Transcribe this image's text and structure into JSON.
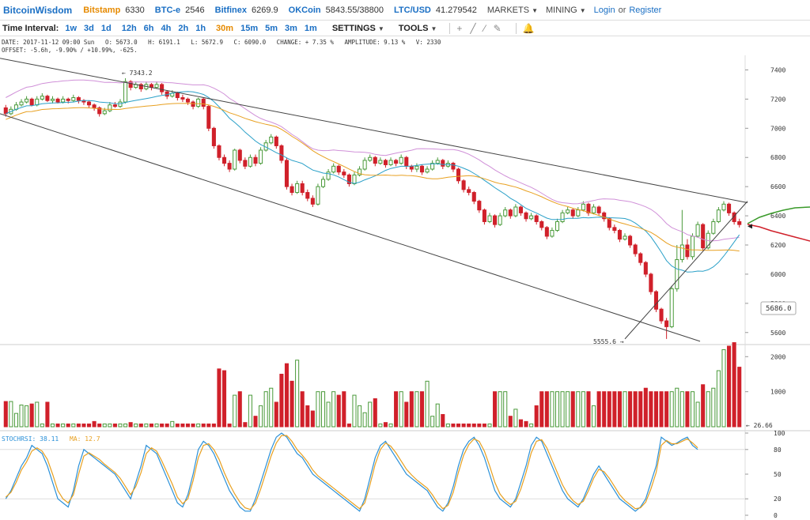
{
  "topbar": {
    "brand": "BitcoinWisdom",
    "markets": [
      {
        "name": "Bitstamp",
        "value": "6330",
        "color": "#e68a00"
      },
      {
        "name": "BTC-e",
        "value": "2546",
        "color": "#1a6fc4"
      },
      {
        "name": "Bitfinex",
        "value": "6269.9",
        "color": "#1a6fc4"
      },
      {
        "name": "OKCoin",
        "value": "5843.55/38800",
        "color": "#1a6fc4"
      },
      {
        "name": "LTC/USD",
        "value": "41.279542",
        "color": "#1a6fc4"
      }
    ],
    "menu_markets": "MARKETS",
    "menu_mining": "MINING",
    "login": "Login",
    "or": "or",
    "register": "Register"
  },
  "toolbar": {
    "label": "Time Interval:",
    "intervals": [
      "1w",
      "3d",
      "1d",
      "12h",
      "6h",
      "4h",
      "2h",
      "1h",
      "30m",
      "15m",
      "5m",
      "3m",
      "1m"
    ],
    "selected": "30m",
    "settings": "SETTINGS",
    "tools": "TOOLS",
    "tool_icons": [
      "crosshair-icon",
      "line-tool-icon",
      "ray-tool-icon",
      "pen-tool-icon",
      "bell-icon"
    ]
  },
  "info": {
    "line1": "DATE: 2017-11-12 09:00 Sun   O: 5673.0   H: 6191.1   L: 5672.9   C: 6090.0   CHANGE: + 7.35 %   AMPLITUDE: 9.13 %   V: 2330",
    "line2": "OFFSET: -5.6h, -9.90% / +10.99%, -625."
  },
  "colors": {
    "up": "#4a9a3a",
    "down": "#d0202a",
    "ma_orange": "#e8a020",
    "ma_blue": "#2aa0c8",
    "band_purple": "#d090d8",
    "stoch_blue": "#2a90d8",
    "stoch_orange": "#e8a020"
  },
  "chart_data": {
    "type": "candlestick",
    "price_axis": {
      "ticks": [
        5600,
        5800,
        6000,
        6200,
        6400,
        6600,
        6800,
        7000,
        7200,
        7400
      ],
      "ylim": [
        5550,
        7500
      ]
    },
    "annotations": {
      "high": "← 7343.2",
      "low": "5555.6 →",
      "last_price": "6330",
      "current_price": "5686.0",
      "volume_last": "← 26.66"
    },
    "volume_axis": {
      "ticks": [
        1000,
        2000
      ],
      "ylim": [
        0,
        2300
      ]
    },
    "stoch": {
      "label": "STOCHRSI: 38.11",
      "ma_label": "MA: 12.7",
      "ticks": [
        0,
        20,
        50,
        80,
        100
      ]
    },
    "candles": [
      [
        7140,
        7100,
        7160,
        7080,
        "d"
      ],
      [
        7100,
        7130,
        7150,
        7090,
        "u"
      ],
      [
        7130,
        7160,
        7180,
        7120,
        "u"
      ],
      [
        7160,
        7180,
        7200,
        7150,
        "u"
      ],
      [
        7180,
        7200,
        7220,
        7170,
        "u"
      ],
      [
        7200,
        7160,
        7210,
        7150,
        "d"
      ],
      [
        7160,
        7200,
        7220,
        7150,
        "u"
      ],
      [
        7200,
        7220,
        7240,
        7190,
        "u"
      ],
      [
        7220,
        7190,
        7230,
        7180,
        "d"
      ],
      [
        7190,
        7200,
        7220,
        7170,
        "u"
      ],
      [
        7200,
        7180,
        7210,
        7170,
        "d"
      ],
      [
        7180,
        7200,
        7220,
        7170,
        "u"
      ],
      [
        7200,
        7190,
        7210,
        7170,
        "d"
      ],
      [
        7190,
        7210,
        7230,
        7180,
        "u"
      ],
      [
        7210,
        7190,
        7220,
        7170,
        "d"
      ],
      [
        7190,
        7180,
        7200,
        7160,
        "d"
      ],
      [
        7180,
        7160,
        7190,
        7140,
        "d"
      ],
      [
        7160,
        7140,
        7170,
        7120,
        "d"
      ],
      [
        7140,
        7100,
        7150,
        7080,
        "d"
      ],
      [
        7100,
        7120,
        7140,
        7090,
        "u"
      ],
      [
        7120,
        7160,
        7180,
        7110,
        "u"
      ],
      [
        7160,
        7150,
        7180,
        7140,
        "d"
      ],
      [
        7150,
        7180,
        7200,
        7140,
        "u"
      ],
      [
        7180,
        7320,
        7343,
        7170,
        "u"
      ],
      [
        7320,
        7280,
        7330,
        7260,
        "d"
      ],
      [
        7280,
        7300,
        7320,
        7270,
        "u"
      ],
      [
        7300,
        7270,
        7310,
        7250,
        "d"
      ],
      [
        7270,
        7300,
        7320,
        7260,
        "u"
      ],
      [
        7300,
        7280,
        7310,
        7260,
        "d"
      ],
      [
        7280,
        7300,
        7320,
        7270,
        "u"
      ],
      [
        7300,
        7250,
        7310,
        7230,
        "d"
      ],
      [
        7250,
        7220,
        7260,
        7200,
        "d"
      ],
      [
        7220,
        7240,
        7260,
        7210,
        "u"
      ],
      [
        7240,
        7210,
        7250,
        7190,
        "d"
      ],
      [
        7210,
        7200,
        7230,
        7180,
        "d"
      ],
      [
        7200,
        7180,
        7210,
        7160,
        "d"
      ],
      [
        7180,
        7150,
        7190,
        7130,
        "d"
      ],
      [
        7150,
        7200,
        7210,
        7140,
        "u"
      ],
      [
        7200,
        7150,
        7210,
        7130,
        "d"
      ],
      [
        7150,
        7000,
        7160,
        6980,
        "d"
      ],
      [
        7000,
        6880,
        7010,
        6860,
        "d"
      ],
      [
        6880,
        6800,
        6890,
        6780,
        "d"
      ],
      [
        6800,
        6760,
        6820,
        6740,
        "d"
      ],
      [
        6760,
        6720,
        6780,
        6700,
        "d"
      ],
      [
        6720,
        6850,
        6860,
        6710,
        "u"
      ],
      [
        6850,
        6780,
        6860,
        6760,
        "d"
      ],
      [
        6780,
        6740,
        6800,
        6720,
        "d"
      ],
      [
        6740,
        6800,
        6820,
        6730,
        "u"
      ],
      [
        6800,
        6760,
        6820,
        6740,
        "d"
      ],
      [
        6760,
        6850,
        6870,
        6750,
        "u"
      ],
      [
        6850,
        6900,
        6920,
        6840,
        "u"
      ],
      [
        6900,
        6940,
        6960,
        6890,
        "u"
      ],
      [
        6940,
        6880,
        6950,
        6860,
        "d"
      ],
      [
        6880,
        6780,
        6890,
        6760,
        "d"
      ],
      [
        6780,
        6600,
        6800,
        6580,
        "d"
      ],
      [
        6600,
        6560,
        6620,
        6540,
        "d"
      ],
      [
        6560,
        6620,
        6640,
        6550,
        "u"
      ],
      [
        6620,
        6560,
        6640,
        6540,
        "d"
      ],
      [
        6560,
        6520,
        6580,
        6500,
        "d"
      ],
      [
        6520,
        6480,
        6540,
        6460,
        "d"
      ],
      [
        6480,
        6600,
        6620,
        6470,
        "u"
      ],
      [
        6600,
        6650,
        6670,
        6590,
        "u"
      ],
      [
        6650,
        6700,
        6720,
        6640,
        "u"
      ],
      [
        6700,
        6740,
        6760,
        6690,
        "u"
      ],
      [
        6740,
        6700,
        6750,
        6680,
        "d"
      ],
      [
        6700,
        6680,
        6720,
        6660,
        "d"
      ],
      [
        6680,
        6620,
        6690,
        6600,
        "d"
      ],
      [
        6620,
        6680,
        6700,
        6610,
        "u"
      ],
      [
        6680,
        6720,
        6740,
        6670,
        "u"
      ],
      [
        6720,
        6780,
        6800,
        6710,
        "u"
      ],
      [
        6780,
        6800,
        6820,
        6770,
        "u"
      ],
      [
        6800,
        6760,
        6810,
        6740,
        "d"
      ],
      [
        6760,
        6780,
        6800,
        6750,
        "u"
      ],
      [
        6780,
        6750,
        6790,
        6730,
        "d"
      ],
      [
        6750,
        6780,
        6800,
        6740,
        "u"
      ],
      [
        6780,
        6760,
        6790,
        6740,
        "d"
      ],
      [
        6760,
        6800,
        6820,
        6750,
        "u"
      ],
      [
        6800,
        6740,
        6810,
        6720,
        "d"
      ],
      [
        6740,
        6720,
        6750,
        6700,
        "d"
      ],
      [
        6720,
        6740,
        6760,
        6700,
        "u"
      ],
      [
        6740,
        6700,
        6750,
        6680,
        "d"
      ],
      [
        6700,
        6720,
        6740,
        6690,
        "u"
      ],
      [
        6720,
        6760,
        6780,
        6710,
        "u"
      ],
      [
        6760,
        6780,
        6800,
        6750,
        "u"
      ],
      [
        6780,
        6740,
        6790,
        6720,
        "d"
      ],
      [
        6740,
        6760,
        6780,
        6730,
        "u"
      ],
      [
        6760,
        6720,
        6770,
        6700,
        "d"
      ],
      [
        6720,
        6640,
        6730,
        6620,
        "d"
      ],
      [
        6640,
        6580,
        6650,
        6560,
        "d"
      ],
      [
        6580,
        6560,
        6600,
        6540,
        "d"
      ],
      [
        6560,
        6500,
        6570,
        6480,
        "d"
      ],
      [
        6500,
        6440,
        6510,
        6420,
        "d"
      ],
      [
        6440,
        6360,
        6450,
        6340,
        "d"
      ],
      [
        6360,
        6400,
        6420,
        6350,
        "u"
      ],
      [
        6400,
        6340,
        6410,
        6320,
        "d"
      ],
      [
        6340,
        6400,
        6420,
        6330,
        "u"
      ],
      [
        6400,
        6440,
        6460,
        6390,
        "u"
      ],
      [
        6440,
        6400,
        6450,
        6380,
        "d"
      ],
      [
        6400,
        6460,
        6480,
        6390,
        "u"
      ],
      [
        6460,
        6420,
        6470,
        6400,
        "d"
      ],
      [
        6420,
        6380,
        6430,
        6360,
        "d"
      ],
      [
        6380,
        6400,
        6420,
        6370,
        "u"
      ],
      [
        6400,
        6360,
        6410,
        6340,
        "d"
      ],
      [
        6360,
        6320,
        6370,
        6300,
        "d"
      ],
      [
        6320,
        6260,
        6330,
        6240,
        "d"
      ],
      [
        6260,
        6300,
        6320,
        6250,
        "u"
      ],
      [
        6300,
        6360,
        6380,
        6290,
        "u"
      ],
      [
        6360,
        6420,
        6440,
        6350,
        "u"
      ],
      [
        6420,
        6440,
        6460,
        6410,
        "u"
      ],
      [
        6440,
        6400,
        6450,
        6380,
        "d"
      ],
      [
        6400,
        6440,
        6460,
        6390,
        "u"
      ],
      [
        6440,
        6480,
        6500,
        6430,
        "u"
      ],
      [
        6480,
        6420,
        6490,
        6400,
        "d"
      ],
      [
        6420,
        6460,
        6480,
        6410,
        "u"
      ],
      [
        6460,
        6420,
        6470,
        6400,
        "d"
      ],
      [
        6420,
        6380,
        6430,
        6360,
        "d"
      ],
      [
        6380,
        6320,
        6390,
        6300,
        "d"
      ],
      [
        6320,
        6300,
        6340,
        6280,
        "d"
      ],
      [
        6300,
        6240,
        6310,
        6220,
        "d"
      ],
      [
        6240,
        6260,
        6280,
        6230,
        "u"
      ],
      [
        6260,
        6200,
        6270,
        6180,
        "d"
      ],
      [
        6200,
        6140,
        6210,
        6120,
        "d"
      ],
      [
        6140,
        6080,
        6150,
        6060,
        "d"
      ],
      [
        6080,
        6000,
        6090,
        5980,
        "d"
      ],
      [
        6000,
        5880,
        6010,
        5860,
        "d"
      ],
      [
        5880,
        5760,
        5890,
        5740,
        "d"
      ],
      [
        5760,
        5680,
        5770,
        5660,
        "d"
      ],
      [
        5680,
        5640,
        5700,
        5556,
        "d"
      ],
      [
        5640,
        5900,
        5920,
        5630,
        "u"
      ],
      [
        5900,
        6100,
        6200,
        5880,
        "u"
      ],
      [
        6100,
        6200,
        6440,
        6080,
        "u"
      ],
      [
        6200,
        6120,
        6240,
        6100,
        "d"
      ],
      [
        6120,
        6260,
        6280,
        6100,
        "u"
      ],
      [
        6260,
        6340,
        6360,
        6250,
        "u"
      ],
      [
        6340,
        6180,
        6350,
        6160,
        "d"
      ],
      [
        6180,
        6280,
        6300,
        6170,
        "u"
      ],
      [
        6280,
        6360,
        6380,
        6270,
        "u"
      ],
      [
        6360,
        6440,
        6460,
        6350,
        "u"
      ],
      [
        6440,
        6480,
        6500,
        6430,
        "u"
      ],
      [
        6480,
        6420,
        6490,
        6400,
        "d"
      ],
      [
        6420,
        6360,
        6430,
        6340,
        "d"
      ],
      [
        6360,
        6340,
        6380,
        6320,
        "d"
      ]
    ],
    "volume": [
      720,
      720,
      380,
      620,
      600,
      650,
      700,
      80,
      700,
      80,
      80,
      80,
      80,
      80,
      80,
      80,
      80,
      150,
      80,
      80,
      80,
      80,
      80,
      80,
      120,
      80,
      80,
      80,
      80,
      80,
      80,
      80,
      150,
      80,
      80,
      80,
      80,
      80,
      80,
      80,
      80,
      1650,
      1600,
      80,
      900,
      1000,
      120,
      900,
      300,
      600,
      1000,
      1100,
      700,
      1500,
      1800,
      1300,
      1900,
      1000,
      600,
      450,
      1000,
      1000,
      700,
      1000,
      900,
      1000,
      80,
      900,
      600,
      400,
      700,
      800,
      80,
      120,
      80,
      1000,
      1000,
      700,
      1000,
      1000,
      1000,
      1300,
      300,
      650,
      350,
      80,
      80,
      80,
      80,
      80,
      80,
      80,
      80,
      80,
      1000,
      1000,
      1000,
      300,
      500,
      200,
      150,
      80,
      600,
      1000,
      1000,
      1000,
      1000,
      1000,
      1000,
      1000,
      1000,
      1000,
      1000,
      600,
      1000,
      1000,
      1000,
      1000,
      1000,
      1000,
      1000,
      1000,
      1000,
      1100,
      1000,
      1000,
      1000,
      1000,
      1000,
      1100,
      1000,
      1000,
      1000,
      700,
      1200,
      1000,
      1100,
      1600,
      2200,
      2300,
      2400,
      1700,
      1500,
      1800,
      1000,
      1100,
      900,
      800,
      650,
      900,
      700,
      600
    ],
    "stoch_k": [
      20,
      30,
      45,
      60,
      70,
      85,
      80,
      75,
      60,
      40,
      20,
      15,
      10,
      30,
      60,
      80,
      75,
      70,
      65,
      60,
      55,
      50,
      40,
      30,
      20,
      40,
      60,
      85,
      80,
      75,
      60,
      45,
      30,
      15,
      10,
      25,
      50,
      80,
      90,
      85,
      75,
      60,
      45,
      30,
      20,
      10,
      5,
      5,
      20,
      40,
      60,
      80,
      95,
      100,
      95,
      85,
      75,
      70,
      60,
      50,
      45,
      40,
      35,
      30,
      25,
      20,
      15,
      10,
      5,
      20,
      45,
      70,
      85,
      90,
      80,
      70,
      60,
      50,
      45,
      40,
      35,
      30,
      20,
      10,
      5,
      15,
      35,
      60,
      80,
      90,
      95,
      85,
      70,
      50,
      30,
      20,
      15,
      10,
      20,
      40,
      60,
      85,
      95,
      90,
      75,
      60,
      45,
      30,
      20,
      15,
      10,
      20,
      35,
      50,
      60,
      50,
      40,
      30,
      20,
      15,
      10,
      5,
      10,
      20,
      40,
      60,
      95,
      90,
      85,
      88,
      92,
      95,
      85,
      80
    ],
    "stoch_d": [
      22,
      28,
      40,
      55,
      65,
      78,
      82,
      78,
      68,
      50,
      30,
      20,
      15,
      25,
      50,
      72,
      76,
      72,
      68,
      62,
      57,
      52,
      45,
      35,
      25,
      35,
      52,
      75,
      82,
      78,
      66,
      52,
      38,
      22,
      14,
      20,
      42,
      70,
      85,
      87,
      80,
      68,
      52,
      38,
      26,
      16,
      9,
      7,
      15,
      32,
      52,
      72,
      88,
      97,
      97,
      90,
      80,
      73,
      65,
      55,
      48,
      43,
      38,
      33,
      28,
      23,
      18,
      13,
      8,
      15,
      37,
      62,
      80,
      88,
      84,
      76,
      66,
      56,
      49,
      43,
      38,
      33,
      25,
      15,
      8,
      12,
      28,
      52,
      73,
      86,
      93,
      90,
      78,
      60,
      40,
      26,
      18,
      13,
      17,
      32,
      52,
      76,
      90,
      92,
      82,
      67,
      52,
      37,
      26,
      18,
      13,
      17,
      30,
      45,
      56,
      53,
      45,
      35,
      25,
      18,
      13,
      8,
      9,
      16,
      32,
      52,
      85,
      91,
      87,
      87,
      90,
      93,
      88,
      82
    ]
  }
}
